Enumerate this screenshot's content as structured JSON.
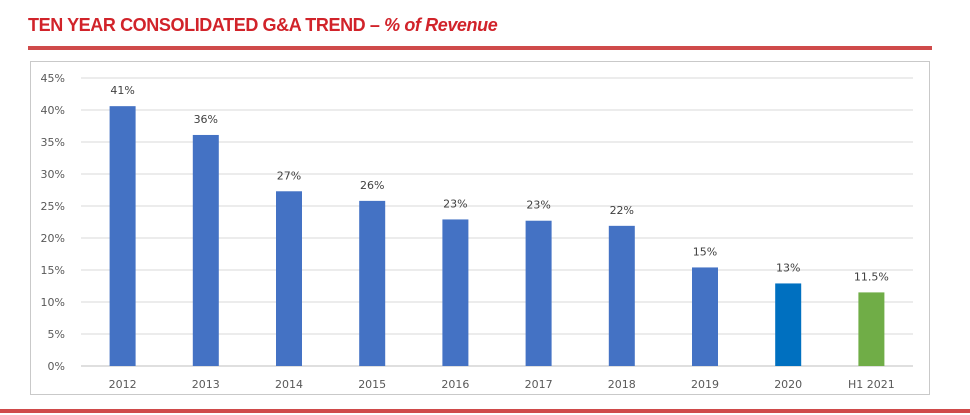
{
  "header": {
    "title": "TEN YEAR  CONSOLIDATED G&A TREND – ",
    "subtitle": "% of Revenue",
    "accent_color": "#d1232a",
    "rule_color": "#cf4a4a"
  },
  "chart_data": {
    "type": "bar",
    "categories": [
      "2012",
      "2013",
      "2014",
      "2015",
      "2016",
      "2017",
      "2018",
      "2019",
      "2020",
      "H1 2021"
    ],
    "values": [
      40.6,
      36.1,
      27.3,
      25.8,
      22.9,
      22.7,
      21.9,
      15.4,
      12.9,
      11.5
    ],
    "data_labels": [
      "41%",
      "36%",
      "27%",
      "26%",
      "23%",
      "23%",
      "22%",
      "15%",
      "13%",
      "11.5%"
    ],
    "bar_colors": [
      "#4472c4",
      "#4472c4",
      "#4472c4",
      "#4472c4",
      "#4472c4",
      "#4472c4",
      "#4472c4",
      "#4472c4",
      "#0070c0",
      "#70ad47"
    ],
    "ylim": [
      0,
      45
    ],
    "yticks": [
      0,
      5,
      10,
      15,
      20,
      25,
      30,
      35,
      40,
      45
    ],
    "ytick_labels": [
      "0%",
      "5%",
      "10%",
      "15%",
      "20%",
      "25%",
      "30%",
      "35%",
      "40%",
      "45%"
    ],
    "grid": true,
    "legend": "none",
    "xlabel": "",
    "ylabel": ""
  }
}
